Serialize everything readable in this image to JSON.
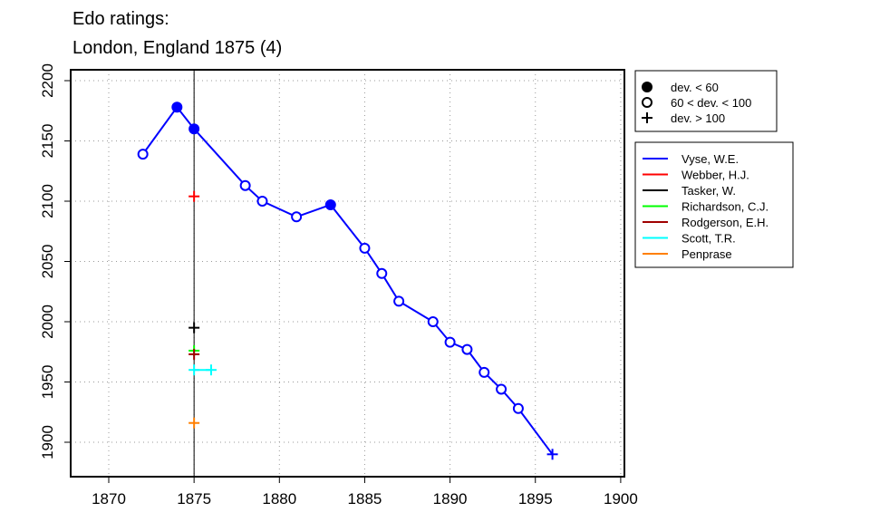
{
  "chart_data": {
    "type": "line",
    "title": "Edo ratings:",
    "subtitle": "London, England 1875 (4)",
    "xlim": [
      1868,
      1901
    ],
    "ylim": [
      1875,
      2215
    ],
    "xticks": [
      1870,
      1875,
      1880,
      1885,
      1890,
      1895,
      1900
    ],
    "yticks": [
      1900,
      1950,
      2000,
      2050,
      2100,
      2150,
      2200
    ],
    "grid": true,
    "vline": 1875,
    "marker_legend": [
      {
        "symbol": "filled",
        "label": "dev. < 60"
      },
      {
        "symbol": "open",
        "label": "60 < dev. < 100"
      },
      {
        "symbol": "plus",
        "label": "dev. > 100"
      }
    ],
    "series": [
      {
        "name": "Vyse, W.E.",
        "color": "#0000ff",
        "points": [
          [
            1872,
            2139,
            "open"
          ],
          [
            1874,
            2178,
            "filled"
          ],
          [
            1875,
            2160,
            "filled"
          ],
          [
            1878,
            2113,
            "open"
          ],
          [
            1879,
            2100,
            "open"
          ],
          [
            1881,
            2087,
            "open"
          ],
          [
            1883,
            2097,
            "filled"
          ],
          [
            1885,
            2061,
            "open"
          ],
          [
            1886,
            2040,
            "open"
          ],
          [
            1887,
            2017,
            "open"
          ],
          [
            1889,
            2000,
            "open"
          ],
          [
            1890,
            1983,
            "open"
          ],
          [
            1891,
            1977,
            "open"
          ],
          [
            1892,
            1958,
            "open"
          ],
          [
            1893,
            1944,
            "open"
          ],
          [
            1894,
            1928,
            "open"
          ],
          [
            1896,
            1890,
            "plus"
          ]
        ]
      },
      {
        "name": "Webber, H.J.",
        "color": "#ff0000",
        "points": [
          [
            1875,
            2104,
            "plus"
          ]
        ]
      },
      {
        "name": "Tasker, W.",
        "color": "#000000",
        "points": [
          [
            1875,
            1995,
            "plus"
          ]
        ]
      },
      {
        "name": "Richardson, C.J.",
        "color": "#00ff00",
        "points": [
          [
            1875,
            1976,
            "plus"
          ]
        ]
      },
      {
        "name": "Rodgerson, E.H.",
        "color": "#a00000",
        "points": [
          [
            1875,
            1973,
            "plus"
          ]
        ]
      },
      {
        "name": "Scott, T.R.",
        "color": "#00ffff",
        "points": [
          [
            1875,
            1960,
            "plus"
          ],
          [
            1876,
            1960,
            "plus"
          ]
        ]
      },
      {
        "name": "Penprase",
        "color": "#ff7f00",
        "points": [
          [
            1875,
            1916,
            "plus"
          ]
        ]
      }
    ]
  }
}
